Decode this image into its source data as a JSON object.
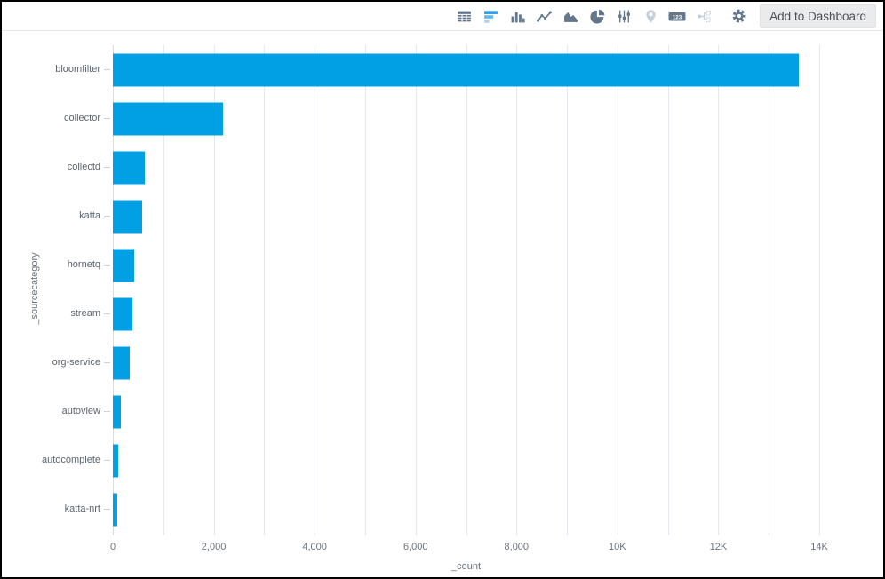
{
  "window": {
    "background": "#ffffff",
    "border_color": "#000000"
  },
  "toolbar": {
    "icons": [
      {
        "name": "table-icon",
        "state": "default"
      },
      {
        "name": "horizontal-bar-chart-icon",
        "state": "active"
      },
      {
        "name": "column-chart-icon",
        "state": "default"
      },
      {
        "name": "line-chart-icon",
        "state": "default"
      },
      {
        "name": "area-chart-icon",
        "state": "default"
      },
      {
        "name": "pie-chart-icon",
        "state": "default"
      },
      {
        "name": "sliders-icon",
        "state": "default"
      },
      {
        "name": "map-pin-icon",
        "state": "disabled"
      },
      {
        "name": "single-value-123-icon",
        "state": "default"
      },
      {
        "name": "flow-node-icon",
        "state": "disabled"
      },
      {
        "name": "gear-icon",
        "state": "default"
      }
    ],
    "icon_123_text": "123",
    "add_to_dashboard_label": "Add to Dashboard",
    "colors": {
      "icon": "#64778c",
      "icon_disabled": "#c7d0d8",
      "icon_active": "#2f9ce8",
      "icon_active_light": "#8ccbf4",
      "button_bg": "#e9ebed",
      "button_text": "#4a4f54"
    }
  },
  "chart_data": {
    "type": "bar",
    "orientation": "horizontal",
    "title": "",
    "categories": [
      "bloomfilter",
      "collector",
      "collectd",
      "katta",
      "hornetq",
      "stream",
      "org-service",
      "autoview",
      "autocomplete",
      "katta-nrt"
    ],
    "values": [
      13590,
      2180,
      640,
      580,
      420,
      380,
      330,
      150,
      100,
      80
    ],
    "xlabel": "_count",
    "ylabel": "_sourcecategory",
    "xlim": [
      0,
      14000
    ],
    "x_tick_labels": [
      {
        "value": 0,
        "label": "0"
      },
      {
        "value": 2000,
        "label": "2,000"
      },
      {
        "value": 4000,
        "label": "4,000"
      },
      {
        "value": 6000,
        "label": "6,000"
      },
      {
        "value": 8000,
        "label": "8,000"
      },
      {
        "value": 10000,
        "label": "10K"
      },
      {
        "value": 12000,
        "label": "12K"
      },
      {
        "value": 14000,
        "label": "14K"
      }
    ],
    "gridline_interval": 1000,
    "grid": true,
    "legend": false,
    "bar_color": "#00a1e4",
    "gridline_color": "#e3e9ef",
    "axis_line_color": "#d6dee5",
    "label_color": "#5b656f"
  }
}
